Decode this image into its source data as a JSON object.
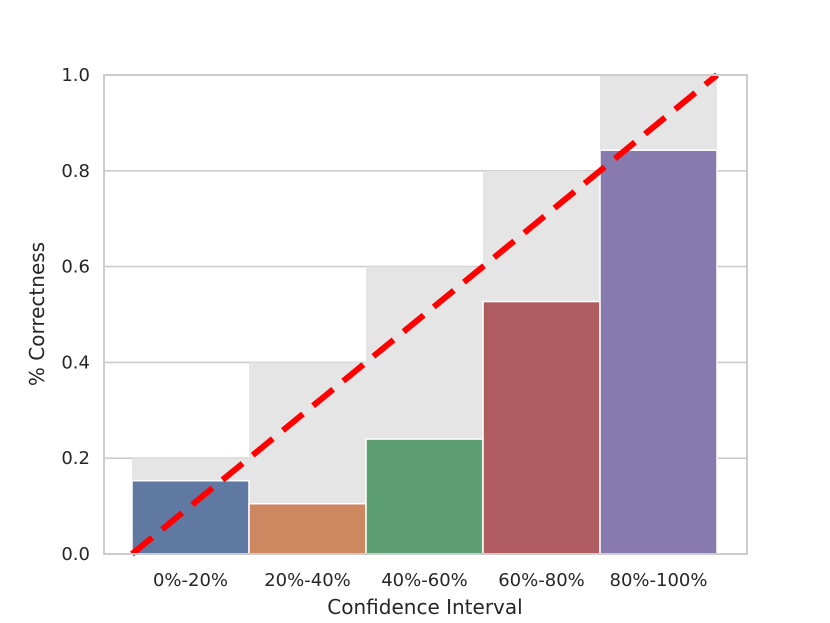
{
  "chart_data": {
    "type": "bar",
    "title": "",
    "xlabel": "Confidence Interval",
    "ylabel": "% Correctness",
    "categories": [
      "0%-20%",
      "20%-40%",
      "40%-60%",
      "60%-80%",
      "80%-100%"
    ],
    "series": [
      {
        "values": [
          0.153,
          0.105,
          0.24,
          0.527,
          0.843
        ]
      }
    ],
    "gap_bars": [
      0.2,
      0.4,
      0.6,
      0.8,
      1.0
    ],
    "reference_line": {
      "style": "dashed",
      "from": [
        0,
        0
      ],
      "to": [
        1,
        1
      ]
    },
    "ylim": [
      0,
      1.0
    ],
    "yticks": [
      "0.0",
      "0.2",
      "0.4",
      "0.6",
      "0.8",
      "1.0"
    ],
    "grid": true,
    "colors": {
      "bars": [
        "#4c6a9a",
        "#c97b4f",
        "#4a9462",
        "#a8484d",
        "#7a6ba6"
      ],
      "gap": "#e5e5e5",
      "reference_line": "#ff0000",
      "grid": "#cccccc",
      "spine": "#cccccc"
    }
  }
}
